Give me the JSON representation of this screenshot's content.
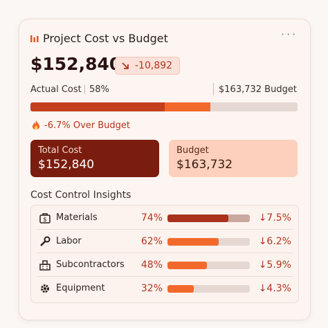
{
  "header": {
    "title": "Project Cost vs Budget"
  },
  "summary": {
    "amount": "$152,840",
    "delta": "-10,892"
  },
  "progress": {
    "actual_label": "Actual Cost",
    "actual_percent": "58%",
    "budget_label": "$163,732 Budget",
    "status": "-6.7% Over Budget"
  },
  "boxes": [
    {
      "label": "Total Cost",
      "value": "$152,840"
    },
    {
      "label": "Budget",
      "value": "$163,732"
    }
  ],
  "insights": {
    "title": "Cost Control Insights",
    "rows": [
      {
        "name": "Materials",
        "percent": 74,
        "percent_label": "74%",
        "change": "↓7.5%"
      },
      {
        "name": "Labor",
        "percent": 62,
        "percent_label": "62%",
        "change": "↓6.2%"
      },
      {
        "name": "Subcontractors",
        "percent": 48,
        "percent_label": "48%",
        "change": "↓5.9%"
      },
      {
        "name": "Equipment",
        "percent": 32,
        "percent_label": "32%",
        "change": "↓4.3%"
      }
    ]
  }
}
